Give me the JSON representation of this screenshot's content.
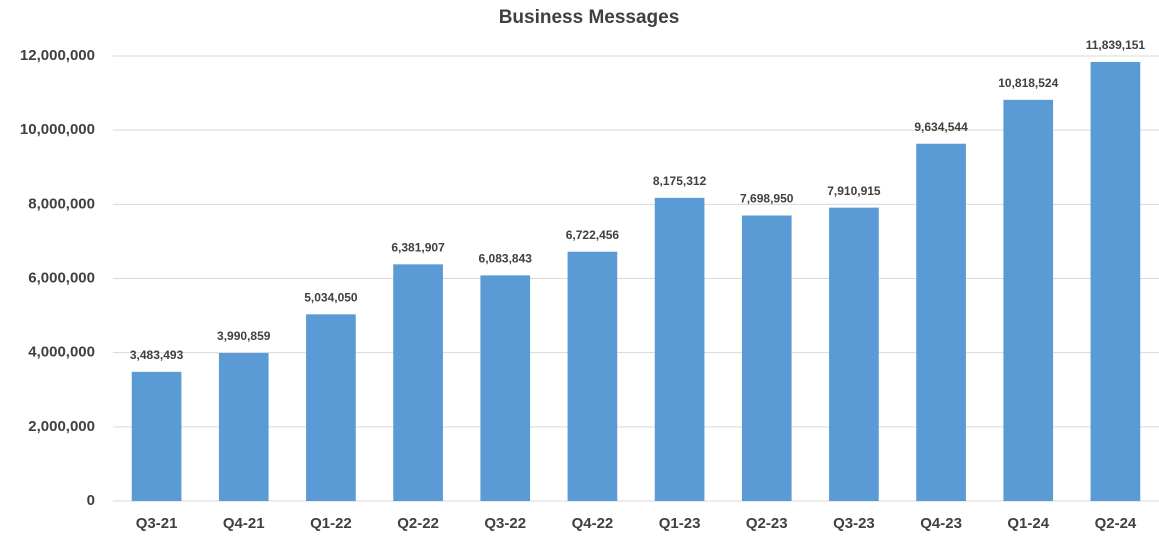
{
  "chart_data": {
    "type": "bar",
    "title": "Business Messages",
    "categories": [
      "Q3-21",
      "Q4-21",
      "Q1-22",
      "Q2-22",
      "Q3-22",
      "Q4-22",
      "Q1-23",
      "Q2-23",
      "Q3-23",
      "Q4-23",
      "Q1-24",
      "Q2-24"
    ],
    "values": [
      3483493,
      3990859,
      5034050,
      6381907,
      6083843,
      6722456,
      8175312,
      7698950,
      7910915,
      9634544,
      10818524,
      11839151
    ],
    "value_labels": [
      "3,483,493",
      "3,990,859",
      "5,034,050",
      "6,381,907",
      "6,083,843",
      "6,722,456",
      "8,175,312",
      "7,698,950",
      "7,910,915",
      "9,634,544",
      "10,818,524",
      "11,839,151"
    ],
    "color": "#5b9bd5",
    "ylim": [
      0,
      12000000
    ],
    "yticks": [
      0,
      {
        "value": 2000000,
        "label": "2,000,000"
      },
      {
        "value": 4000000,
        "label": "4,000,000"
      },
      {
        "value": 6000000,
        "label": "6,000,000"
      },
      {
        "value": 8000000,
        "label": "8,000,000"
      },
      {
        "value": 10000000,
        "label": "10,000,000"
      },
      {
        "value": 12000000,
        "label": "12,000,000"
      }
    ],
    "grid": true
  }
}
